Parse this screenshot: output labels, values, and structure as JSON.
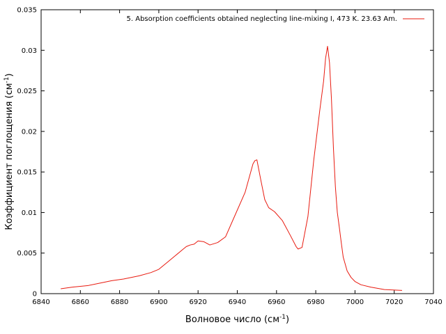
{
  "chart_data": {
    "type": "line",
    "xlabel": "Волновое число (см",
    "xlabel_sup": "-1",
    "xlabel_end": ")",
    "ylabel": "Коэффициент поглощения (см",
    "ylabel_sup": "-1",
    "ylabel_end": ")",
    "xlim": [
      6840,
      7040
    ],
    "ylim": [
      0,
      0.035
    ],
    "xticks": [
      6840,
      6860,
      6880,
      6900,
      6920,
      6940,
      6960,
      6980,
      7000,
      7020,
      7040
    ],
    "yticks": [
      0,
      0.005,
      0.01,
      0.015,
      0.02,
      0.025,
      0.03,
      0.035
    ],
    "xtick_labels": [
      "6840",
      "6860",
      "6880",
      "6900",
      "6920",
      "6940",
      "6960",
      "6980",
      "7000",
      "7020",
      "7040"
    ],
    "ytick_labels": [
      "0",
      "0.005",
      "0.01",
      "0.015",
      "0.02",
      "0.025",
      "0.03",
      "0.035"
    ],
    "grid": false,
    "legend_position": "top-right",
    "series": [
      {
        "name": "5. Absorption coefficients obtained neglecting line-mixing I, 473 K. 23.63 Am.",
        "color": "#e8190e",
        "x": [
          6850,
          6856,
          6864,
          6870,
          6876,
          6882,
          6890,
          6896,
          6900,
          6904,
          6908,
          6912,
          6914,
          6916,
          6918,
          6920,
          6923,
          6926,
          6930,
          6934,
          6938,
          6944,
          6948,
          6949,
          6950,
          6952,
          6954,
          6956,
          6959,
          6963,
          6967,
          6970,
          6971,
          6973,
          6976,
          6979,
          6982,
          6984,
          6985,
          6986,
          6987,
          6988,
          6989,
          6990,
          6991,
          6992,
          6993,
          6994,
          6996,
          6998,
          7000,
          7003,
          7008,
          7015,
          7024
        ],
        "y": [
          0.0006,
          0.0008,
          0.001,
          0.0013,
          0.0016,
          0.0018,
          0.0022,
          0.0026,
          0.003,
          0.0038,
          0.0046,
          0.0054,
          0.0058,
          0.006,
          0.0061,
          0.0065,
          0.0064,
          0.006,
          0.0063,
          0.007,
          0.0092,
          0.0125,
          0.016,
          0.0164,
          0.0165,
          0.014,
          0.0116,
          0.0106,
          0.0101,
          0.009,
          0.0072,
          0.0058,
          0.0055,
          0.0057,
          0.0095,
          0.0165,
          0.0225,
          0.0262,
          0.029,
          0.0305,
          0.0285,
          0.024,
          0.018,
          0.0132,
          0.01,
          0.0082,
          0.0063,
          0.0045,
          0.0028,
          0.002,
          0.0015,
          0.0011,
          0.0008,
          0.0005,
          0.0004
        ]
      }
    ]
  }
}
